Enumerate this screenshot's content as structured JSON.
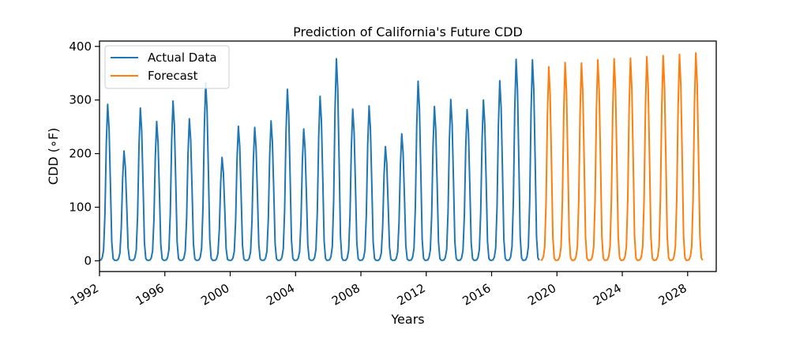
{
  "chart_data": {
    "type": "line",
    "title": "Prediction of California's Future CDD",
    "xlabel": "Years",
    "ylabel": "CDD (∘F)",
    "xlim": [
      1992.0,
      2029.75
    ],
    "ylim": [
      -20,
      410
    ],
    "x_ticks": [
      1992,
      1996,
      2000,
      2004,
      2008,
      2012,
      2016,
      2020,
      2024,
      2028
    ],
    "x_tick_labels": [
      "1992",
      "1996",
      "2000",
      "2004",
      "2008",
      "2012",
      "2016",
      "2020",
      "2024",
      "2028"
    ],
    "y_ticks": [
      0,
      100,
      200,
      300,
      400
    ],
    "y_tick_labels": [
      "0",
      "100",
      "200",
      "300",
      "400"
    ],
    "grid": false,
    "legend": "top-left",
    "colors": {
      "actual": "#1f77b4",
      "forecast": "#ff7f0e"
    },
    "series": [
      {
        "name": "Actual Data",
        "start": "1992-01",
        "end": "2018-12",
        "frequency": "monthly",
        "annual_peaks": [
          292,
          205,
          285,
          260,
          298,
          265,
          332,
          193,
          251,
          249,
          261,
          320,
          246,
          307,
          377,
          283,
          289,
          213,
          237,
          335,
          288,
          301,
          282,
          300,
          336,
          376,
          375
        ]
      },
      {
        "name": "Forecast",
        "start": "2019-01",
        "end": "2028-12",
        "frequency": "monthly",
        "annual_peaks": [
          362,
          370,
          369,
          375,
          377,
          378,
          381,
          383,
          385,
          388
        ]
      }
    ]
  }
}
